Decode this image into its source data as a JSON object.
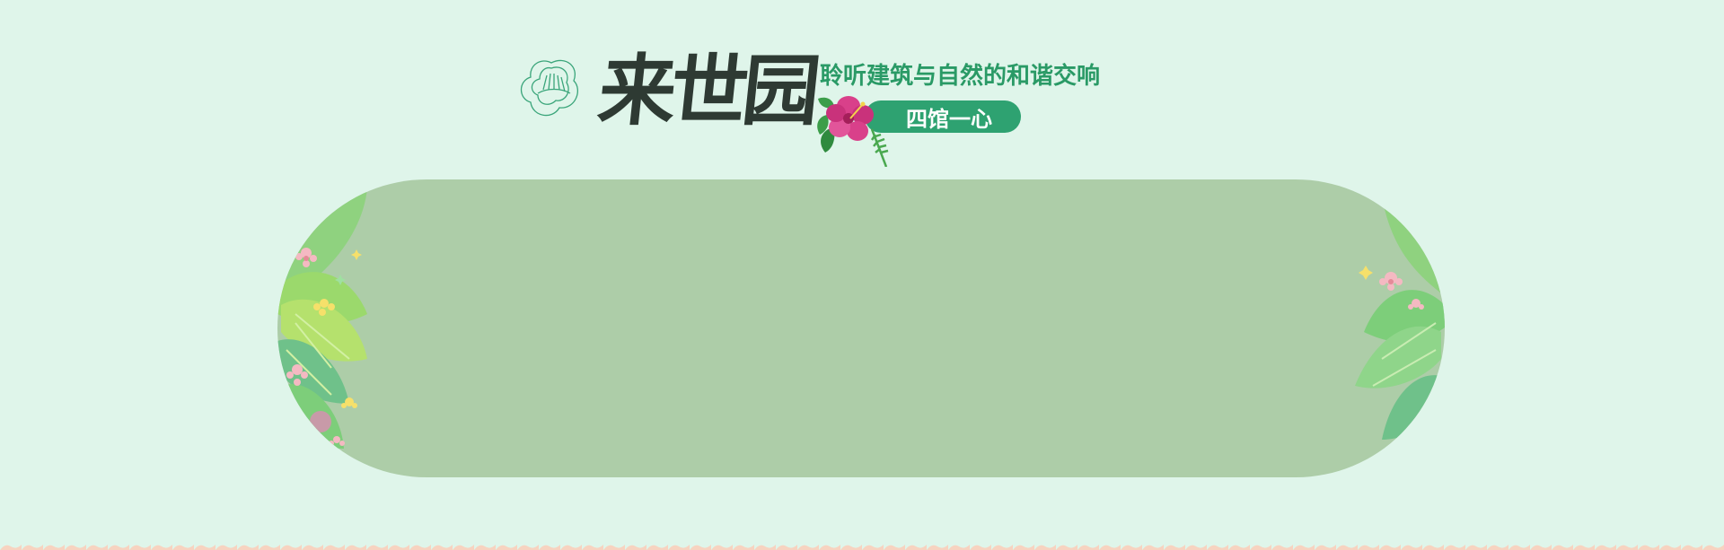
{
  "header": {
    "brand_title": "来世园",
    "slogan": "聆听建筑与自然的和谐交响",
    "tag": "四馆一心"
  },
  "icons": {
    "logo": "lotus-outline-icon",
    "hibiscus": "hibiscus-flower-icon",
    "left_decor": "tropical-leaves-left-decor",
    "right_decor": "tropical-leaves-right-decor"
  },
  "colors": {
    "background": "#dff5ea",
    "brand_text": "#2e3a33",
    "accent_green": "#2ea271",
    "slogan_green": "#2a9a66",
    "banner_fill": "#adcda8",
    "border_wave": "#f7d3c0"
  }
}
